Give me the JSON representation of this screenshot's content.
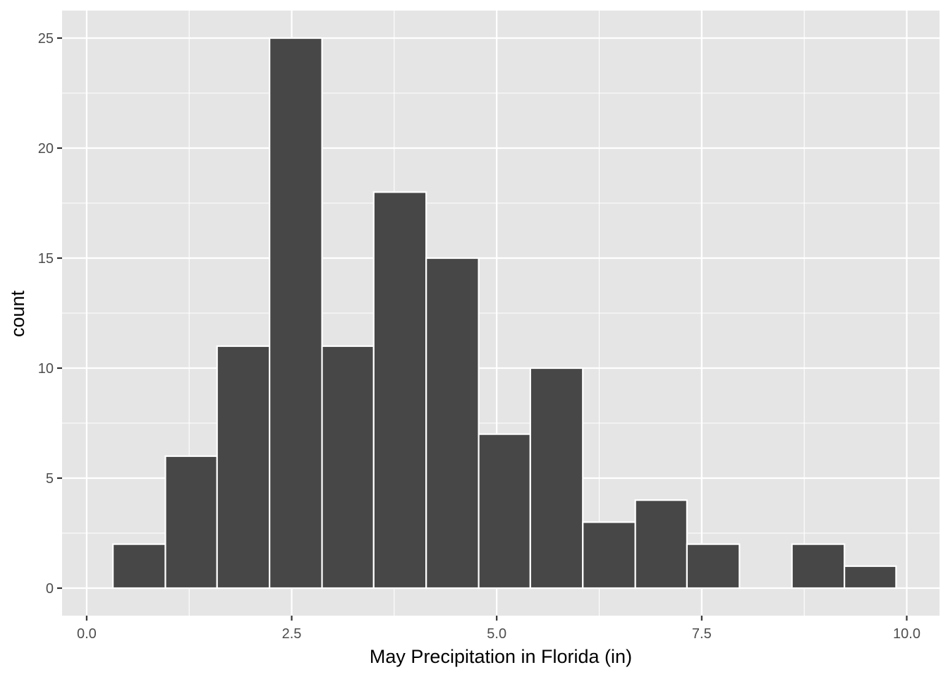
{
  "chart_data": {
    "type": "bar",
    "subtype": "histogram",
    "xlabel": "May Precipitation in Florida (in)",
    "ylabel": "count",
    "xlim": [
      -0.3,
      10.4
    ],
    "ylim": [
      -1.25,
      26.25
    ],
    "x_ticks": [
      {
        "value": 0,
        "label": "0.0"
      },
      {
        "value": 2.5,
        "label": "2.5"
      },
      {
        "value": 5,
        "label": "5.0"
      },
      {
        "value": 7.5,
        "label": "7.5"
      },
      {
        "value": 10,
        "label": "10.0"
      }
    ],
    "y_ticks": [
      {
        "value": 0,
        "label": "0"
      },
      {
        "value": 5,
        "label": "5"
      },
      {
        "value": 10,
        "label": "10"
      },
      {
        "value": 15,
        "label": "15"
      },
      {
        "value": 20,
        "label": "20"
      },
      {
        "value": 25,
        "label": "25"
      }
    ],
    "bins": [
      {
        "x0": 0.32,
        "x1": 0.96,
        "count": 2
      },
      {
        "x0": 0.96,
        "x1": 1.59,
        "count": 6
      },
      {
        "x0": 1.59,
        "x1": 2.23,
        "count": 11
      },
      {
        "x0": 2.23,
        "x1": 2.87,
        "count": 25
      },
      {
        "x0": 2.87,
        "x1": 3.5,
        "count": 11
      },
      {
        "x0": 3.5,
        "x1": 4.14,
        "count": 18
      },
      {
        "x0": 4.14,
        "x1": 4.78,
        "count": 15
      },
      {
        "x0": 4.78,
        "x1": 5.41,
        "count": 7
      },
      {
        "x0": 5.41,
        "x1": 6.05,
        "count": 10
      },
      {
        "x0": 6.05,
        "x1": 6.69,
        "count": 3
      },
      {
        "x0": 6.69,
        "x1": 7.32,
        "count": 4
      },
      {
        "x0": 7.32,
        "x1": 7.96,
        "count": 2
      },
      {
        "x0": 7.96,
        "x1": 8.6,
        "count": 0
      },
      {
        "x0": 8.6,
        "x1": 9.24,
        "count": 2
      },
      {
        "x0": 9.24,
        "x1": 9.87,
        "count": 1
      }
    ],
    "grid": true,
    "legend": "none",
    "colors": {
      "panel": "#e5e5e5",
      "grid": "#ffffff",
      "bar_fill": "#474747",
      "bar_stroke": "#ffffff",
      "tick_text": "#4d4d4d",
      "tick_mark": "#333333"
    }
  }
}
